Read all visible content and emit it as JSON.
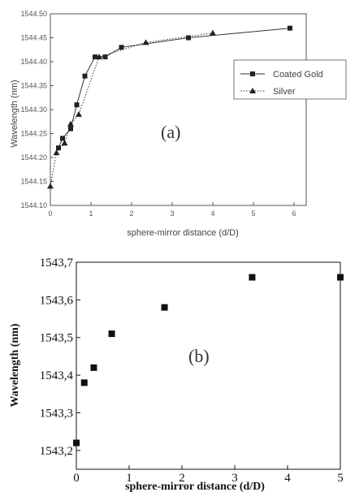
{
  "chart_data": [
    {
      "type": "line",
      "panel_label": "(a)",
      "xlabel": "sphere-mirror distance (d/D)",
      "ylabel": "Wavelength (nm)",
      "xlim": [
        0,
        6.3
      ],
      "ylim": [
        1544.1,
        1544.5
      ],
      "x_ticks": [
        0,
        1,
        2,
        3,
        4,
        5,
        6
      ],
      "x_tick_labels": [
        "0",
        "1",
        "2",
        "3",
        "4",
        "5",
        "6"
      ],
      "y_ticks": [
        1544.1,
        1544.15,
        1544.2,
        1544.25,
        1544.3,
        1544.35,
        1544.4,
        1544.45,
        1544.5
      ],
      "y_tick_labels": [
        "1544.10",
        "1544.15",
        "1544.20",
        "1544.25",
        "1544.30",
        "1544.35",
        "1544.40",
        "1544.45",
        "1544.50"
      ],
      "legend_position": "right",
      "series": [
        {
          "name": "Coated Gold",
          "marker": "square",
          "line": "solid",
          "x": [
            0.2,
            0.3,
            0.5,
            0.65,
            0.85,
            1.1,
            1.35,
            1.75,
            3.4,
            5.9
          ],
          "y": [
            1544.22,
            1544.24,
            1544.26,
            1544.31,
            1544.37,
            1544.41,
            1544.41,
            1544.43,
            1544.45,
            1544.47
          ]
        },
        {
          "name": "Silver",
          "marker": "triangle",
          "line": "dotted",
          "x": [
            0.0,
            0.15,
            0.35,
            0.5,
            0.7,
            1.2,
            2.35,
            4.0
          ],
          "y": [
            1544.14,
            1544.21,
            1544.23,
            1544.27,
            1544.29,
            1544.41,
            1544.44,
            1544.46
          ]
        }
      ]
    },
    {
      "type": "scatter",
      "panel_label": "(b)",
      "xlabel": "sphere-mirror distance  (d/D)",
      "ylabel": "Wavelength (nm)",
      "xlim": [
        0,
        5
      ],
      "ylim": [
        1543.15,
        1543.7
      ],
      "x_ticks": [
        0,
        1,
        2,
        3,
        4,
        5
      ],
      "x_tick_labels": [
        "0",
        "1",
        "2",
        "3",
        "4",
        "5"
      ],
      "y_ticks": [
        1543.2,
        1543.3,
        1543.4,
        1543.5,
        1543.6,
        1543.7
      ],
      "y_tick_labels": [
        "1543,2",
        "1543,3",
        "1543,4",
        "1543,5",
        "1543,6",
        "1543,7"
      ],
      "series": [
        {
          "marker": "square",
          "x": [
            0.0,
            0.15,
            0.33,
            0.67,
            1.67,
            3.33,
            5.0
          ],
          "y": [
            1543.22,
            1543.38,
            1543.42,
            1543.51,
            1543.58,
            1543.66,
            1543.66
          ]
        }
      ]
    }
  ]
}
